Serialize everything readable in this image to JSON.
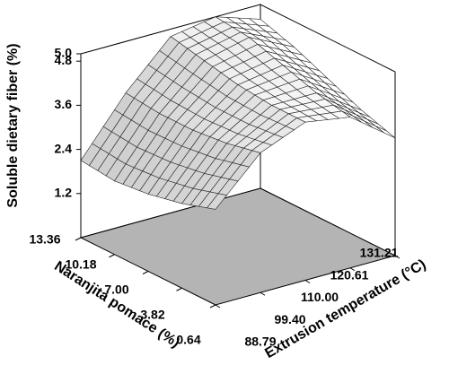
{
  "chart_data": {
    "type": "surface",
    "zlabel": "Soluble dietary fiber (%)",
    "xlabel": "Naranjita pomace (%)",
    "ylabel": "Extrusion  temperature (°C)",
    "x": [
      0.64,
      3.82,
      7.0,
      10.18,
      13.36
    ],
    "y": [
      88.79,
      99.4,
      110.0,
      120.61,
      131.21
    ],
    "z": [
      [
        2.6,
        3.8,
        4.3,
        4.1,
        3.2
      ],
      [
        2.3,
        3.6,
        4.3,
        4.3,
        3.5
      ],
      [
        2.1,
        3.5,
        4.4,
        4.6,
        3.9
      ],
      [
        2.0,
        3.5,
        4.6,
        4.9,
        4.3
      ],
      [
        2.1,
        3.6,
        4.8,
        5.0,
        4.6
      ]
    ],
    "xlim": [
      0.64,
      13.36
    ],
    "ylim": [
      88.79,
      131.21
    ],
    "zlim": [
      0,
      5
    ],
    "xticks": [
      0.64,
      3.82,
      {
        "value": 7.0,
        "label": "7.00"
      },
      10.18,
      13.36
    ],
    "yticks": [
      88.79,
      {
        "value": 99.4,
        "label": "99.40"
      },
      {
        "value": 110.0,
        "label": "110.00"
      },
      120.61,
      131.21
    ],
    "zticks": [
      1.2,
      2.4,
      3.6,
      4.8,
      {
        "value": 5.0,
        "label": "5.0"
      }
    ],
    "floor_color": "#b4b4b4",
    "surface_color": "#ffffff"
  }
}
